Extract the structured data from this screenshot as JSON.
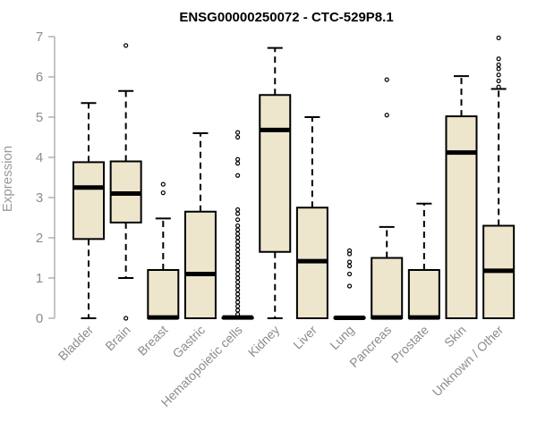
{
  "colors": {
    "box_fill": "#ede6cd",
    "axis": "#8c8c8c",
    "ink": "#000000"
  },
  "chart_data": {
    "type": "boxplot",
    "title": "ENSG00000250072 - CTC-529P8.1",
    "xlabel": "",
    "ylabel": "Expression",
    "ylim": [
      0,
      7
    ],
    "yticks": [
      "0",
      "1",
      "2",
      "3",
      "4",
      "5",
      "6",
      "7"
    ],
    "categories": [
      "Bladder",
      "Brain",
      "Breast",
      "Gastric",
      "Hematopoietic cells",
      "Kidney",
      "Liver",
      "Lung",
      "Pancreas",
      "Prostate",
      "Skin",
      "Unknown / Other"
    ],
    "boxes": [
      {
        "name": "Bladder",
        "min": 0,
        "q1": 1.97,
        "median": 3.25,
        "q3": 3.88,
        "max": 5.35,
        "outliers": []
      },
      {
        "name": "Brain",
        "min": 1.0,
        "q1": 2.38,
        "median": 3.1,
        "q3": 3.9,
        "max": 5.65,
        "outliers": [
          0.0,
          6.78
        ]
      },
      {
        "name": "Breast",
        "min": 0,
        "q1": 0,
        "median": 0.02,
        "q3": 1.2,
        "max": 2.48,
        "outliers": [
          3.12,
          3.33
        ]
      },
      {
        "name": "Gastric",
        "min": 0,
        "q1": 0,
        "median": 1.1,
        "q3": 2.65,
        "max": 4.6,
        "outliers": []
      },
      {
        "name": "Hematopoietic cells",
        "min": 0,
        "q1": 0,
        "median": 0.02,
        "q3": 0.02,
        "max": 0.02,
        "outliers": [
          0.1,
          0.2,
          0.3,
          0.4,
          0.5,
          0.6,
          0.7,
          0.8,
          0.9,
          1.0,
          1.1,
          1.2,
          1.3,
          1.4,
          1.5,
          1.6,
          1.7,
          1.8,
          1.9,
          2.0,
          2.1,
          2.2,
          2.3,
          2.45,
          2.6,
          2.7,
          3.55,
          3.85,
          3.95,
          4.5,
          4.62
        ]
      },
      {
        "name": "Kidney",
        "min": 0,
        "q1": 1.65,
        "median": 4.68,
        "q3": 5.55,
        "max": 6.72,
        "outliers": []
      },
      {
        "name": "Liver",
        "min": 0,
        "q1": 0,
        "median": 1.42,
        "q3": 2.75,
        "max": 5.0,
        "outliers": []
      },
      {
        "name": "Lung",
        "min": 0,
        "q1": 0,
        "median": 0.01,
        "q3": 0.02,
        "max": 0.02,
        "outliers": [
          0.8,
          1.1,
          1.3,
          1.4,
          1.6,
          1.68
        ]
      },
      {
        "name": "Pancreas",
        "min": 0,
        "q1": 0,
        "median": 0.02,
        "q3": 1.5,
        "max": 2.27,
        "outliers": [
          5.05,
          5.93
        ]
      },
      {
        "name": "Prostate",
        "min": 0,
        "q1": 0,
        "median": 0.02,
        "q3": 1.2,
        "max": 2.85,
        "outliers": []
      },
      {
        "name": "Skin",
        "min": 0,
        "q1": 0,
        "median": 4.12,
        "q3": 5.02,
        "max": 6.02,
        "outliers": []
      },
      {
        "name": "Unknown / Other",
        "min": 0,
        "q1": 0,
        "median": 1.18,
        "q3": 2.3,
        "max": 5.7,
        "outliers": [
          5.75,
          5.9,
          6.05,
          6.2,
          6.3,
          6.45,
          6.97
        ]
      }
    ]
  }
}
